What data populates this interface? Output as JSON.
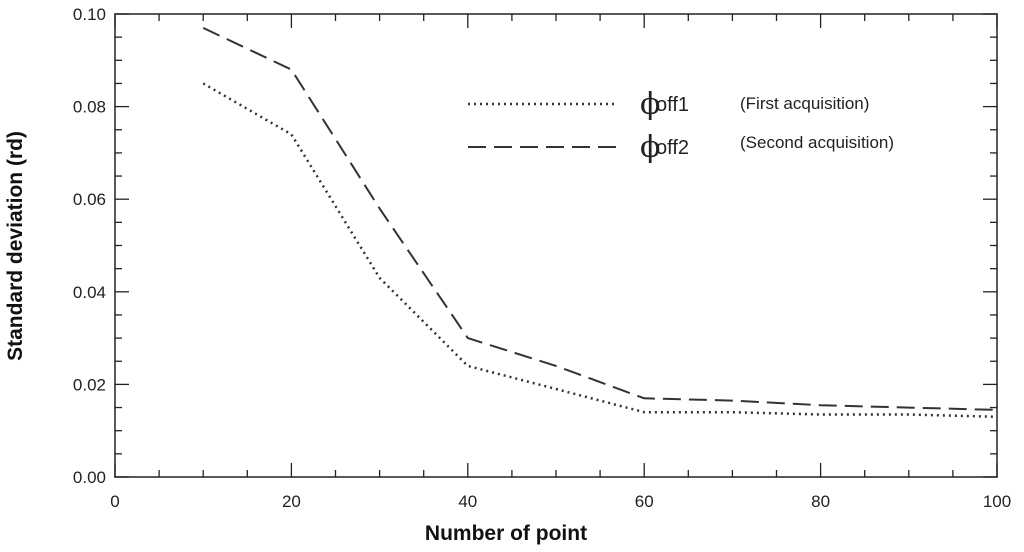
{
  "chart_data": {
    "type": "line",
    "title": "",
    "xlabel": "Number of point",
    "ylabel": "Standard deviation (rd)",
    "xlim": [
      0,
      100
    ],
    "ylim": [
      0,
      0.1
    ],
    "x_ticks": [
      "0",
      "20",
      "40",
      "60",
      "80",
      "100"
    ],
    "y_ticks": [
      "0.00",
      "0.02",
      "0.04",
      "0.06",
      "0.08",
      "0.10"
    ],
    "grid": false,
    "legend_position": "top-right",
    "series": [
      {
        "name": "off1",
        "symbol": "ϕ",
        "note": "(First acquisition)",
        "style": "dotted",
        "x": [
          10,
          20,
          30,
          40,
          50,
          60,
          70,
          80,
          90,
          100
        ],
        "y": [
          0.085,
          0.074,
          0.043,
          0.024,
          0.019,
          0.014,
          0.014,
          0.0135,
          0.0135,
          0.013
        ]
      },
      {
        "name": "off2",
        "symbol": "ϕ",
        "note": "(Second acquisition)",
        "style": "dashed",
        "x": [
          10,
          20,
          30,
          40,
          50,
          60,
          70,
          80,
          90,
          100
        ],
        "y": [
          0.097,
          0.088,
          0.058,
          0.03,
          0.024,
          0.017,
          0.0165,
          0.0155,
          0.015,
          0.0145
        ]
      }
    ]
  }
}
